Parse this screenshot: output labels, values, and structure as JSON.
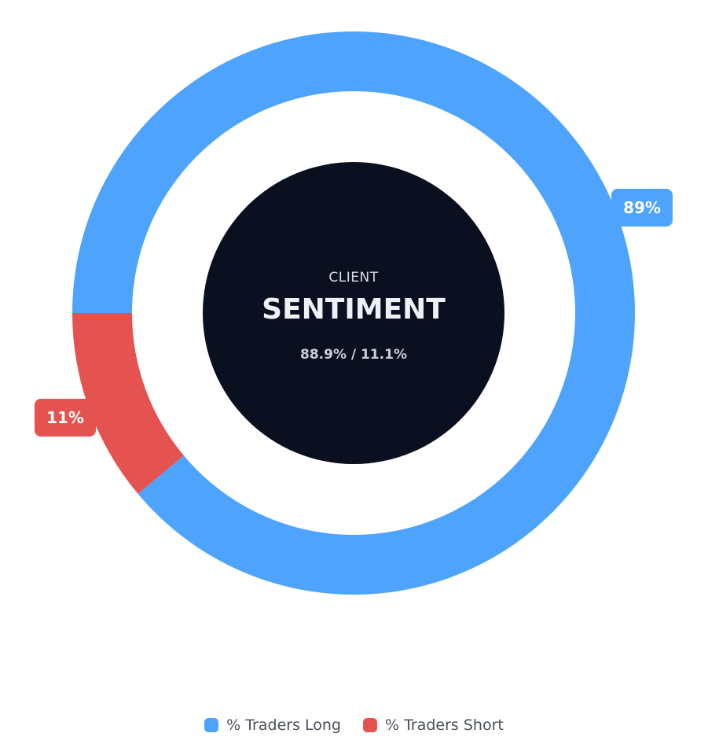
{
  "chart_data": {
    "type": "pie",
    "variant": "donut",
    "title": "",
    "series": [
      {
        "name": "% Traders Long",
        "value": 88.9,
        "label": "89%",
        "color": "#4ea3fd"
      },
      {
        "name": "% Traders Short",
        "value": 11.1,
        "label": "11%",
        "color": "#e4534f"
      }
    ],
    "center": {
      "line1": "CLIENT",
      "line2": "SENTIMENT",
      "line3": "88.9% / 11.1%",
      "fill": "#0b1020"
    },
    "legend_position": "bottom-center"
  },
  "legend": {
    "items": [
      {
        "label": "% Traders Long",
        "color": "#4ea3fd"
      },
      {
        "label": "% Traders Short",
        "color": "#e4534f"
      }
    ]
  }
}
